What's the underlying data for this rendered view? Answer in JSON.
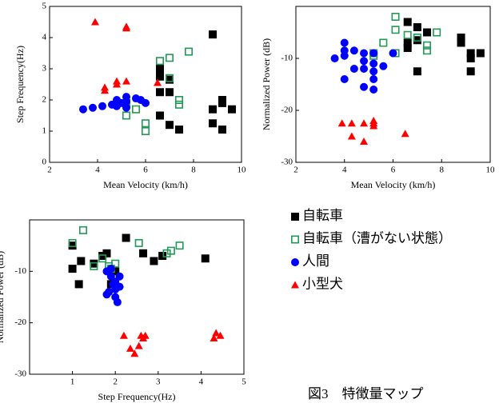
{
  "chart_data": [
    {
      "type": "scatter",
      "xlabel": "Mean Velocity (km/h)",
      "ylabel": "Step Frequency(Hz)",
      "xlim": [
        2,
        10
      ],
      "ylim": [
        0,
        5
      ],
      "xticks": [
        2,
        4,
        6,
        8,
        10
      ],
      "yticks": [
        0,
        1,
        2,
        3,
        4,
        5
      ],
      "series": [
        {
          "color": "#000000",
          "marker": "square",
          "x": [
            8.8,
            6.6,
            6.6,
            7.0,
            6.6,
            7.0,
            6.6,
            7.0,
            7.4,
            8.8,
            9.2,
            9.2,
            9.6,
            8.8,
            9.2
          ],
          "values": [
            4.1,
            3.0,
            2.75,
            2.65,
            2.25,
            2.25,
            1.5,
            1.2,
            1.05,
            1.7,
            1.9,
            2.0,
            1.7,
            1.25,
            1.05
          ]
        },
        {
          "color": "#229955",
          "marker": "open-square",
          "x": [
            6.6,
            7.0,
            7.8,
            7.0,
            7.4,
            7.4,
            5.2,
            5.6,
            5.2,
            6.0,
            6.0
          ],
          "values": [
            3.25,
            3.35,
            3.55,
            2.7,
            2.0,
            1.85,
            1.9,
            1.7,
            1.5,
            1.25,
            1.0
          ]
        },
        {
          "color": "#0000ff",
          "marker": "circle",
          "x": [
            3.4,
            3.8,
            4.2,
            4.6,
            4.8,
            5.0,
            5.2,
            5.2,
            5.6,
            5.8,
            6.0,
            4.8,
            5.2
          ],
          "values": [
            1.7,
            1.75,
            1.8,
            1.85,
            2.0,
            1.9,
            2.1,
            1.95,
            2.05,
            2.0,
            1.9,
            1.8,
            1.75
          ]
        },
        {
          "color": "#ff0000",
          "marker": "triangle",
          "x": [
            3.9,
            5.2,
            5.2,
            4.3,
            4.3,
            4.8,
            5.2,
            4.8,
            6.5
          ],
          "values": [
            4.5,
            4.35,
            4.3,
            2.3,
            2.4,
            2.6,
            2.6,
            2.5,
            2.55
          ]
        }
      ]
    },
    {
      "type": "scatter",
      "xlabel": "Mean Velocity (km/h)",
      "ylabel": "Normalized Power (dB)",
      "xlim": [
        2,
        10
      ],
      "ylim": [
        -30,
        0
      ],
      "xticks": [
        2,
        4,
        6,
        8,
        10
      ],
      "yticks": [
        -30,
        -20,
        -10
      ],
      "series": [
        {
          "color": "#000000",
          "marker": "square",
          "x": [
            6.6,
            6.6,
            6.6,
            7.0,
            7.0,
            7.4,
            7.0,
            8.8,
            8.8,
            9.2,
            9.2,
            9.6,
            9.2
          ],
          "values": [
            -3,
            -7,
            -8,
            -4,
            -6.5,
            -5,
            -12.5,
            -6,
            -7,
            -9,
            -10,
            -9,
            -12.5
          ]
        },
        {
          "color": "#229955",
          "marker": "open-square",
          "x": [
            6.1,
            6.1,
            5.6,
            5.2,
            5.2,
            6.6,
            7.0,
            7.4,
            7.4,
            7.8,
            6.1
          ],
          "values": [
            -2,
            -4.5,
            -7,
            -9,
            -9.5,
            -5.5,
            -6,
            -7.5,
            -8.5,
            -5,
            -9
          ]
        },
        {
          "color": "#0000ff",
          "marker": "circle",
          "x": [
            3.6,
            4.0,
            4.0,
            4.0,
            4.0,
            4.4,
            4.4,
            4.8,
            4.8,
            4.8,
            4.8,
            5.2,
            5.2,
            5.2,
            5.2,
            5.6,
            5.2,
            6.0
          ],
          "values": [
            -10,
            -7,
            -8.5,
            -9.5,
            -14,
            -8.5,
            -12,
            -9,
            -10.5,
            -12,
            -15.5,
            -9,
            -11,
            -12.5,
            -16,
            -11.5,
            -14,
            -9
          ]
        },
        {
          "color": "#ff0000",
          "marker": "triangle",
          "x": [
            3.9,
            4.3,
            4.3,
            4.8,
            4.8,
            5.2,
            5.2,
            5.2,
            6.5
          ],
          "values": [
            -22.5,
            -22.5,
            -25,
            -22.5,
            -26,
            -22.5,
            -23,
            -22,
            -24.5
          ]
        }
      ]
    },
    {
      "type": "scatter",
      "xlabel": "Step Frequency(Hz)",
      "ylabel": "Normalized Power (dB)",
      "xlim": [
        0,
        5
      ],
      "ylim": [
        -30,
        0
      ],
      "xticks": [
        1,
        2,
        3,
        4,
        5
      ],
      "yticks": [
        -30,
        -20,
        -10
      ],
      "series": [
        {
          "color": "#000000",
          "marker": "square",
          "x": [
            1.0,
            1.0,
            1.2,
            1.15,
            1.5,
            1.7,
            1.8,
            1.9,
            2.0,
            2.25,
            2.65,
            2.9,
            3.1,
            4.1
          ],
          "values": [
            -9.5,
            -5,
            -8,
            -12.5,
            -8.5,
            -7,
            -6.5,
            -12.5,
            -10,
            -3.5,
            -6.5,
            -8,
            -7,
            -7.5
          ]
        },
        {
          "color": "#229955",
          "marker": "open-square",
          "x": [
            1.0,
            1.25,
            1.5,
            1.7,
            1.85,
            2.0,
            2.55,
            3.2,
            3.3,
            3.5,
            1.9
          ],
          "values": [
            -4.5,
            -2,
            -9,
            -7.5,
            -9,
            -8.5,
            -4.5,
            -6.5,
            -6,
            -5,
            -9.5
          ]
        },
        {
          "color": "#0000ff",
          "marker": "circle",
          "x": [
            1.8,
            1.9,
            2.0,
            2.1,
            1.85,
            2.0,
            2.05,
            1.95,
            2.1,
            1.9,
            2.0,
            1.8
          ],
          "values": [
            -10,
            -11,
            -12,
            -13,
            -14,
            -15,
            -16,
            -12.5,
            -11,
            -9.5,
            -13.5,
            -14.5
          ]
        },
        {
          "color": "#ff0000",
          "marker": "triangle",
          "x": [
            2.2,
            2.35,
            2.45,
            2.55,
            2.6,
            2.65,
            2.7,
            4.3,
            4.35,
            4.45
          ],
          "values": [
            -22.5,
            -25,
            -26,
            -24.5,
            -22.5,
            -23,
            -22.5,
            -23,
            -22,
            -22.5
          ]
        }
      ]
    }
  ],
  "legend": [
    {
      "name": "自転車",
      "color": "#000000",
      "marker": "square"
    },
    {
      "name": "自転車（漕がない状態）",
      "color": "#229955",
      "marker": "open-square"
    },
    {
      "name": "人間",
      "color": "#0000ff",
      "marker": "circle"
    },
    {
      "name": "小型犬",
      "color": "#ff0000",
      "marker": "triangle"
    }
  ],
  "caption": "図3　特徴量マップ"
}
